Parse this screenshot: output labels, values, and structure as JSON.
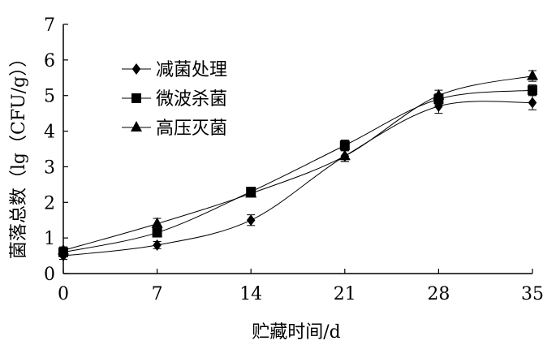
{
  "chart_data": {
    "type": "line",
    "xlabel": "贮藏时间/d",
    "ylabel": "菌落总数（lg（CFU/g））",
    "x": [
      0,
      7,
      14,
      21,
      28,
      35
    ],
    "xlim": [
      0,
      35
    ],
    "ylim": [
      0,
      7
    ],
    "yticks": [
      0,
      1,
      2,
      3,
      4,
      5,
      6,
      7
    ],
    "grid": false,
    "legend_position": "top-left",
    "series": [
      {
        "name": "减菌处理",
        "marker": "diamond",
        "values": [
          0.5,
          0.8,
          1.5,
          3.3,
          4.7,
          4.8
        ],
        "errors": [
          0.1,
          0.1,
          0.15,
          0.15,
          0.2,
          0.2
        ]
      },
      {
        "name": "微波杀菌",
        "marker": "square",
        "values": [
          0.6,
          1.15,
          2.3,
          3.6,
          4.9,
          5.15
        ],
        "errors": [
          0.1,
          0.1,
          0.1,
          0.15,
          0.15,
          0.15
        ]
      },
      {
        "name": "高压灭菌",
        "marker": "triangle",
        "values": [
          0.65,
          1.4,
          2.25,
          3.3,
          5.0,
          5.55
        ],
        "errors": [
          0.1,
          0.15,
          0.1,
          0.15,
          0.15,
          0.15
        ]
      }
    ],
    "color": "#000000"
  }
}
